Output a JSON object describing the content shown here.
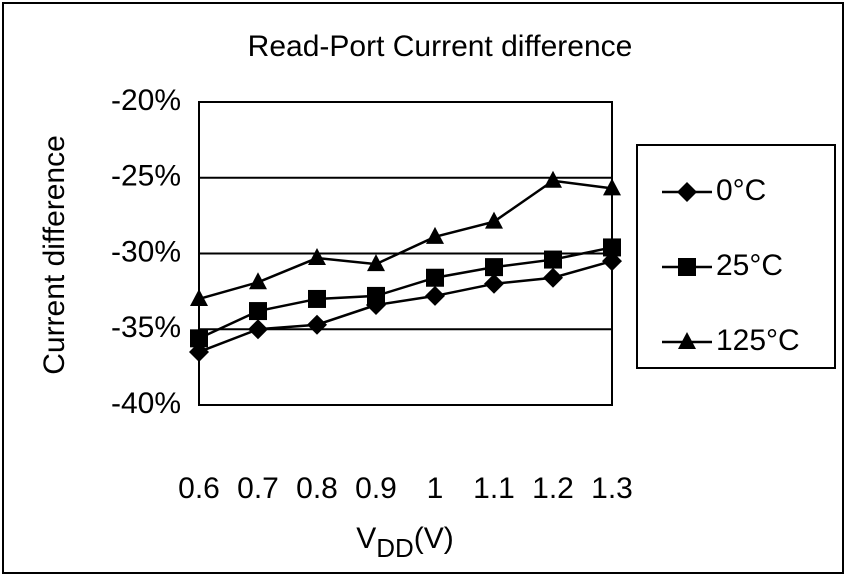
{
  "chart_data": {
    "type": "line",
    "title": "Read-Port Current difference",
    "y_label": "Current difference",
    "x_label": {
      "main": "V",
      "sub": "DD",
      "unit": "(V)"
    },
    "x": [
      0.6,
      0.7,
      0.8,
      0.9,
      1,
      1.1,
      1.2,
      1.3
    ],
    "xlim": [
      0.6,
      1.3
    ],
    "xticks": [
      0.6,
      0.7,
      0.8,
      0.9,
      1,
      1.1,
      1.2,
      1.3
    ],
    "ylim": [
      -40,
      -20
    ],
    "yticks": [
      {
        "value": -20,
        "label": "-20%"
      },
      {
        "value": -25,
        "label": "-25%"
      },
      {
        "value": -30,
        "label": "-30%"
      },
      {
        "value": -35,
        "label": "-35%"
      },
      {
        "value": -40,
        "label": "-40%"
      }
    ],
    "grid": true,
    "legend": "right",
    "series": [
      {
        "name": "0°C",
        "color": "#000000",
        "marker": "diamond",
        "values": [
          -36.5,
          -35,
          -34.7,
          -33.4,
          -32.8,
          -32,
          -31.6,
          -30.5
        ]
      },
      {
        "name": "25°C",
        "color": "#000000",
        "marker": "square",
        "values": [
          -35.6,
          -33.8,
          -33,
          -32.8,
          -31.6,
          -30.9,
          -30.4,
          -29.6
        ]
      },
      {
        "name": "125°C",
        "color": "#000000",
        "marker": "triangle",
        "values": [
          -33,
          -31.9,
          -30.3,
          -30.7,
          -28.9,
          -27.9,
          -25.2,
          -25.7
        ]
      }
    ]
  }
}
